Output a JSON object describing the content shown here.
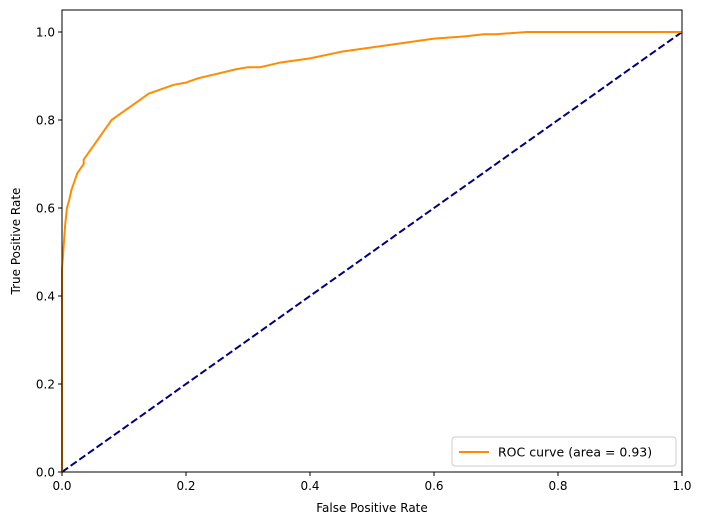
{
  "chart_data": {
    "type": "line",
    "xlabel": "False Positive Rate",
    "ylabel": "True Positive Rate",
    "xlim": [
      0.0,
      1.0
    ],
    "ylim": [
      0.0,
      1.05
    ],
    "xticks": [
      "0.0",
      "0.2",
      "0.4",
      "0.6",
      "0.8",
      "1.0"
    ],
    "yticks": [
      "0.0",
      "0.2",
      "0.4",
      "0.6",
      "0.8",
      "1.0"
    ],
    "grid": false,
    "legend_position": "lower-right",
    "series": [
      {
        "name": "ROC curve (area = 0.93)",
        "color": "#ff8c00",
        "style": "solid",
        "x": [
          0.0,
          0.0,
          0.003,
          0.005,
          0.008,
          0.012,
          0.015,
          0.02,
          0.025,
          0.03,
          0.035,
          0.035,
          0.04,
          0.05,
          0.06,
          0.07,
          0.08,
          0.09,
          0.1,
          0.12,
          0.14,
          0.15,
          0.16,
          0.18,
          0.2,
          0.22,
          0.25,
          0.28,
          0.3,
          0.32,
          0.35,
          0.4,
          0.45,
          0.5,
          0.55,
          0.6,
          0.65,
          0.68,
          0.7,
          0.75,
          0.8,
          1.0
        ],
        "y": [
          0.0,
          0.46,
          0.52,
          0.56,
          0.6,
          0.62,
          0.64,
          0.66,
          0.68,
          0.69,
          0.7,
          0.71,
          0.72,
          0.74,
          0.76,
          0.78,
          0.8,
          0.81,
          0.82,
          0.84,
          0.86,
          0.865,
          0.87,
          0.88,
          0.885,
          0.895,
          0.905,
          0.915,
          0.92,
          0.92,
          0.93,
          0.94,
          0.955,
          0.965,
          0.975,
          0.985,
          0.99,
          0.995,
          0.995,
          1.0,
          1.0,
          1.0
        ]
      },
      {
        "name": "",
        "color": "#000080",
        "style": "dashed",
        "x": [
          0.0,
          1.0
        ],
        "y": [
          0.0,
          1.0
        ]
      }
    ]
  }
}
